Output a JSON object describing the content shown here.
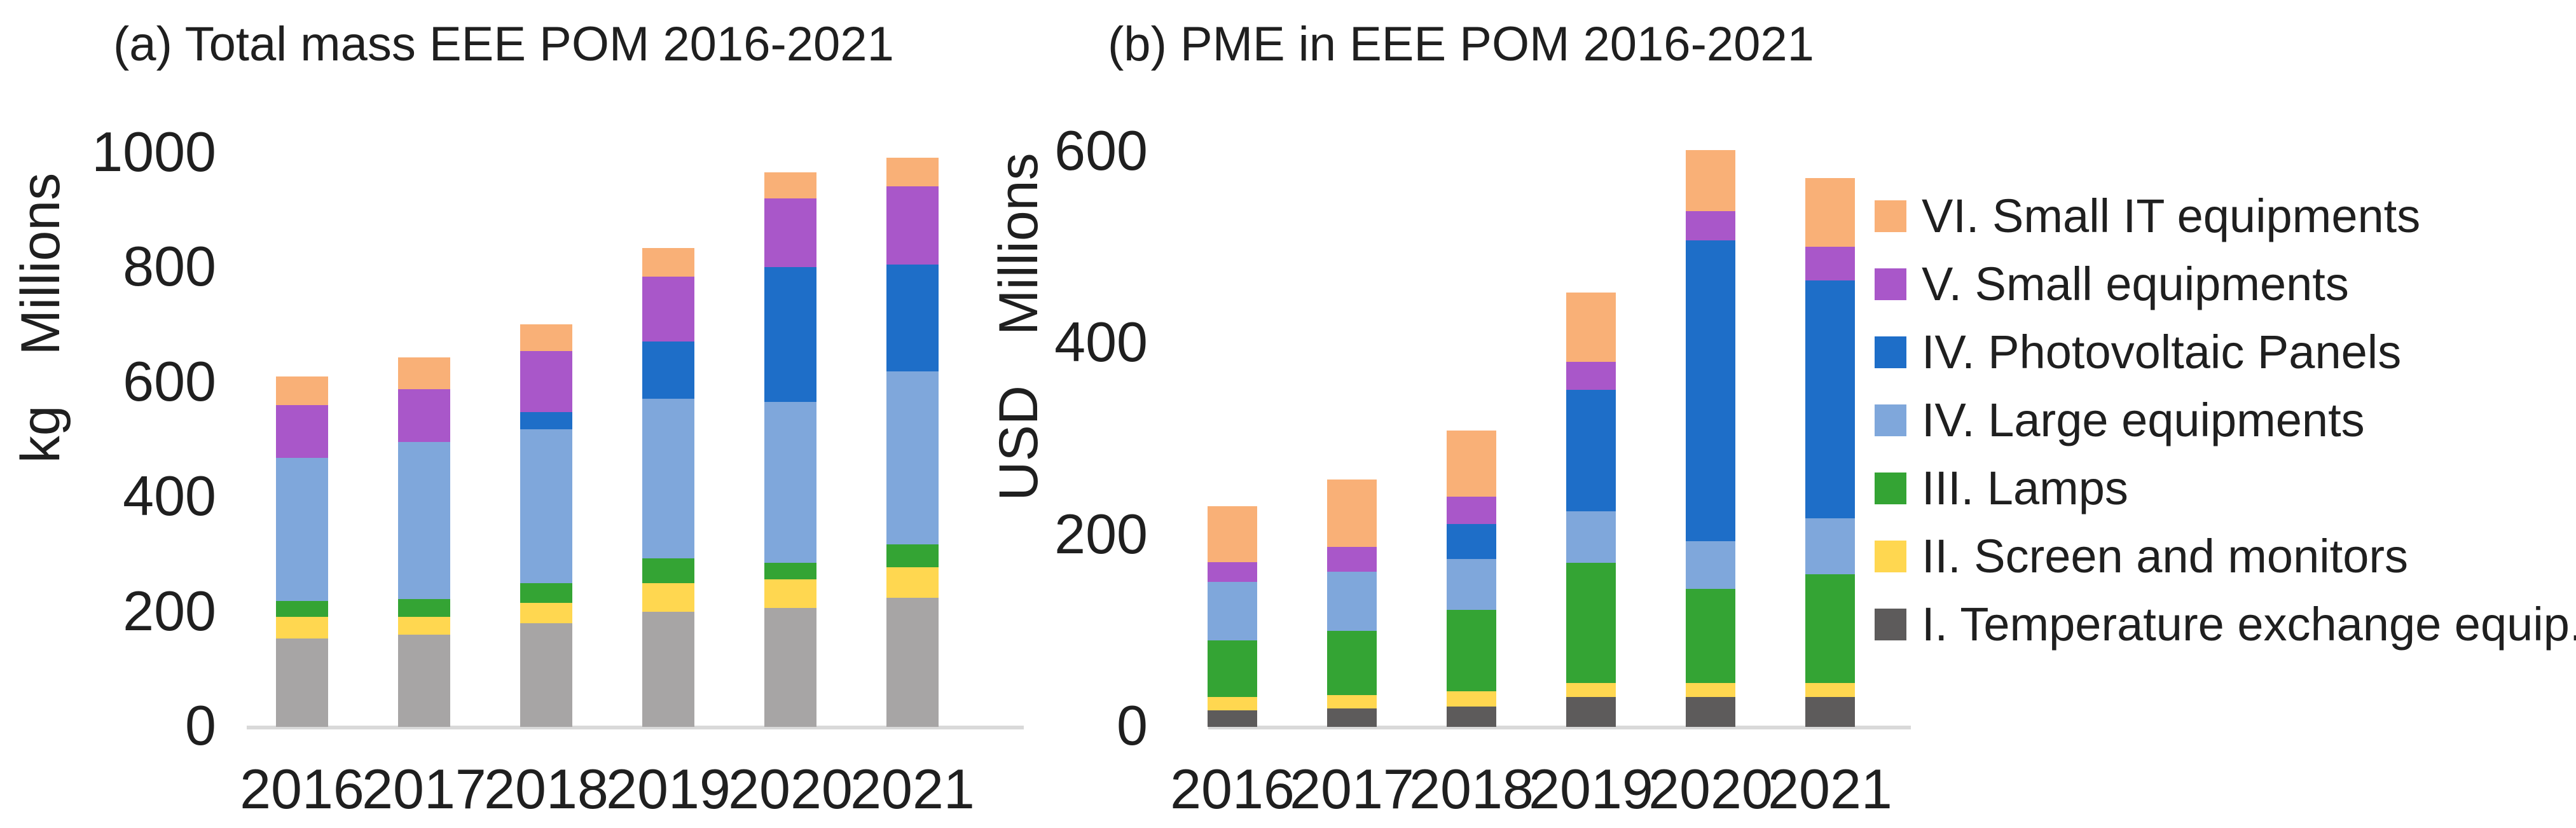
{
  "figure": {
    "background": "#ffffff",
    "text_color": "#1f1f1f",
    "axis_line_color": "#d9d9d9"
  },
  "chart_a": {
    "title": "(a) Total mass EEE POM 2016-2021",
    "ylabel": "kg Millions"
  },
  "chart_b": {
    "title": "(b) PME in EEE POM 2016-2021",
    "ylabel": "USD Millions"
  },
  "legend": {
    "items": [
      {
        "label": "VI. Small IT equipments",
        "color": "#F9B077"
      },
      {
        "label": "V. Small equipments",
        "color": "#A957C9"
      },
      {
        "label": "IV. Photovoltaic Panels",
        "color": "#1E6EC8"
      },
      {
        "label": "IV. Large equipments",
        "color": "#7FA7DB"
      },
      {
        "label": "III. Lamps",
        "color": "#34A434"
      },
      {
        "label": "II. Screen and monitors",
        "color": "#FFD750"
      },
      {
        "label": "I. Temperature exchange equip.",
        "color": "#5D5B5B"
      }
    ]
  },
  "chart_data": [
    {
      "id": "a",
      "type": "bar",
      "stacked": true,
      "title": "(a) Total mass EEE POM 2016-2021",
      "xlabel": "",
      "ylabel": "kg Millions",
      "categories": [
        "2016",
        "2017",
        "2018",
        "2019",
        "2020",
        "2021"
      ],
      "ylim": [
        0,
        1000
      ],
      "yticks": [
        0,
        200,
        400,
        600,
        800,
        1000
      ],
      "grid": false,
      "legend_position": "right",
      "series": [
        {
          "name": "I. Temperature exchange equip.",
          "color": "#A7A5A5",
          "values": [
            154,
            161,
            181,
            201,
            207,
            225
          ]
        },
        {
          "name": "II. Screen and monitors",
          "color": "#FFD750",
          "values": [
            38,
            31,
            35,
            50,
            50,
            53
          ]
        },
        {
          "name": "III. Lamps",
          "color": "#34A434",
          "values": [
            28,
            31,
            35,
            43,
            29,
            40
          ]
        },
        {
          "name": "IV. Large equipments",
          "color": "#7FA7DB",
          "values": [
            249,
            274,
            268,
            278,
            280,
            302
          ]
        },
        {
          "name": "IV. Photovoltaic Panels",
          "color": "#1E6EC8",
          "values": [
            0,
            0,
            30,
            100,
            236,
            186
          ]
        },
        {
          "name": "V. Small equipments",
          "color": "#A957C9",
          "values": [
            92,
            92,
            106,
            113,
            119,
            136
          ]
        },
        {
          "name": "VI. Small IT equipments",
          "color": "#F9B077",
          "values": [
            50,
            55,
            47,
            50,
            46,
            50
          ]
        }
      ],
      "totals": [
        611,
        644,
        702,
        835,
        967,
        992
      ]
    },
    {
      "id": "b",
      "type": "bar",
      "stacked": true,
      "title": "(b) PME in EEE POM 2016-2021",
      "xlabel": "",
      "ylabel": "USD Millions",
      "categories": [
        "2016",
        "2017",
        "2018",
        "2019",
        "2020",
        "2021"
      ],
      "ylim": [
        0,
        600
      ],
      "yticks": [
        0,
        200,
        400,
        600
      ],
      "grid": false,
      "legend_position": "right",
      "series": [
        {
          "name": "I. Temperature exchange equip.",
          "color": "#5D5B5B",
          "values": [
            17,
            19,
            21,
            31,
            31,
            31
          ]
        },
        {
          "name": "II. Screen and monitors",
          "color": "#FFD750",
          "values": [
            14,
            14,
            16,
            15,
            15,
            15
          ]
        },
        {
          "name": "III. Lamps",
          "color": "#34A434",
          "values": [
            59,
            67,
            85,
            125,
            98,
            113
          ]
        },
        {
          "name": "IV. Large equipments",
          "color": "#7FA7DB",
          "values": [
            61,
            62,
            53,
            54,
            50,
            59
          ]
        },
        {
          "name": "IV. Photovoltaic Panels",
          "color": "#1E6EC8",
          "values": [
            0,
            0,
            37,
            127,
            314,
            248
          ]
        },
        {
          "name": "V. Small equipments",
          "color": "#A957C9",
          "values": [
            21,
            26,
            28,
            29,
            30,
            35
          ]
        },
        {
          "name": "VI. Small IT equipments",
          "color": "#F9B077",
          "values": [
            58,
            70,
            69,
            72,
            64,
            72
          ]
        }
      ],
      "totals": [
        230,
        258,
        309,
        453,
        602,
        573
      ]
    }
  ]
}
